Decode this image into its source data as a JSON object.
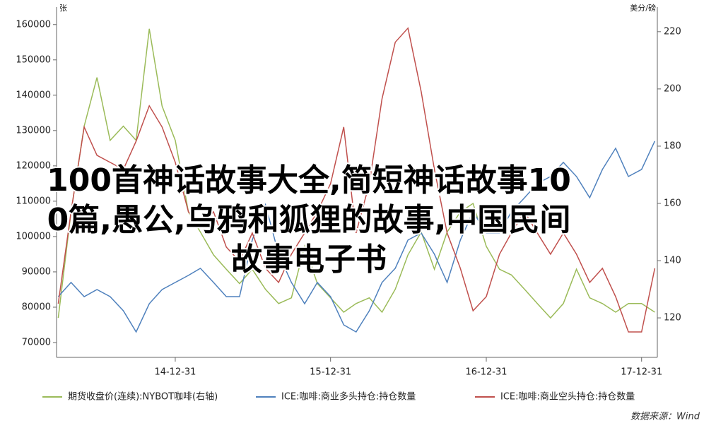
{
  "chart_data": {
    "type": "line",
    "left_unit": "张",
    "right_unit": "美分/磅",
    "overlay_title": [
      "100首神话故事大全,简短神话故事10",
      "0篇,愚公,乌鸦和狐狸的故事,中国民间",
      "故事电子书"
    ],
    "source": "数据来源：Wind",
    "x": [
      "14-03-31",
      "14-04-30",
      "14-05-31",
      "14-06-30",
      "14-07-31",
      "14-08-31",
      "14-09-30",
      "14-10-31",
      "14-11-30",
      "14-12-31",
      "15-01-31",
      "15-02-28",
      "15-03-31",
      "15-04-30",
      "15-05-31",
      "15-06-30",
      "15-07-31",
      "15-08-31",
      "15-09-30",
      "15-10-31",
      "15-11-30",
      "15-12-31",
      "16-01-31",
      "16-02-29",
      "16-03-31",
      "16-04-30",
      "16-05-31",
      "16-06-30",
      "16-07-31",
      "16-08-31",
      "16-09-30",
      "16-10-31",
      "16-11-30",
      "16-12-31",
      "17-01-31",
      "17-02-28",
      "17-03-31",
      "17-04-30",
      "17-05-31",
      "17-06-30",
      "17-07-31",
      "17-08-31",
      "17-09-30",
      "17-10-31",
      "17-11-30",
      "17-12-31",
      "18-01-31"
    ],
    "xlim": [
      "14-03-27",
      "18-02-06"
    ],
    "xticks": [
      "14-12-31",
      "15-12-31",
      "16-12-31",
      "17-12-31"
    ],
    "ylim": [
      65800,
      164950
    ],
    "yticks": [
      70000,
      80000,
      90000,
      100000,
      110000,
      120000,
      130000,
      140000,
      150000,
      160000
    ],
    "y2lim": [
      106.2,
      228.6
    ],
    "y2ticks": [
      120,
      140,
      160,
      180,
      200,
      220
    ],
    "series": [
      {
        "name": "期货收盘价(连续):NYBOT咖啡(右轴)",
        "color": "#9bbb59",
        "axis": "y2",
        "values": [
          120,
          157,
          187,
          204,
          182,
          187,
          182,
          221,
          194,
          182,
          157,
          150,
          142,
          137,
          132,
          137,
          130,
          125,
          127,
          145,
          132,
          127,
          122,
          125,
          127,
          122,
          130,
          142,
          150,
          137,
          150,
          157,
          160,
          145,
          137,
          135,
          130,
          125,
          120,
          125,
          137,
          127,
          125,
          122,
          125,
          125,
          122
        ]
      },
      {
        "name": "ICE:咖啡:商业多头持仓:持仓数量",
        "color": "#4f81bd",
        "values": [
          83000,
          87000,
          83000,
          85000,
          83000,
          79000,
          73000,
          81000,
          85000,
          87000,
          89000,
          91000,
          87000,
          83000,
          83000,
          99000,
          109000,
          95000,
          87000,
          81000,
          87000,
          83000,
          75000,
          73000,
          79000,
          87000,
          91000,
          99000,
          101000,
          95000,
          87000,
          99000,
          107000,
          101000,
          101000,
          107000,
          111000,
          115000,
          117000,
          121000,
          117000,
          111000,
          119000,
          125000,
          117000,
          119000,
          127000
        ]
      },
      {
        "name": "ICE:咖啡:商业空头持仓:持仓数量",
        "color": "#c0504d",
        "values": [
          81000,
          107000,
          131000,
          123000,
          121000,
          119000,
          127000,
          137000,
          131000,
          121000,
          107000,
          103000,
          107000,
          97000,
          93000,
          101000,
          91000,
          87000,
          95000,
          101000,
          107000,
          115000,
          131000,
          101000,
          115000,
          139000,
          155000,
          159000,
          141000,
          119000,
          101000,
          91000,
          79000,
          83000,
          95000,
          101000,
          107000,
          101000,
          95000,
          101000,
          95000,
          87000,
          91000,
          83000,
          73000,
          73000,
          91000
        ]
      }
    ]
  }
}
